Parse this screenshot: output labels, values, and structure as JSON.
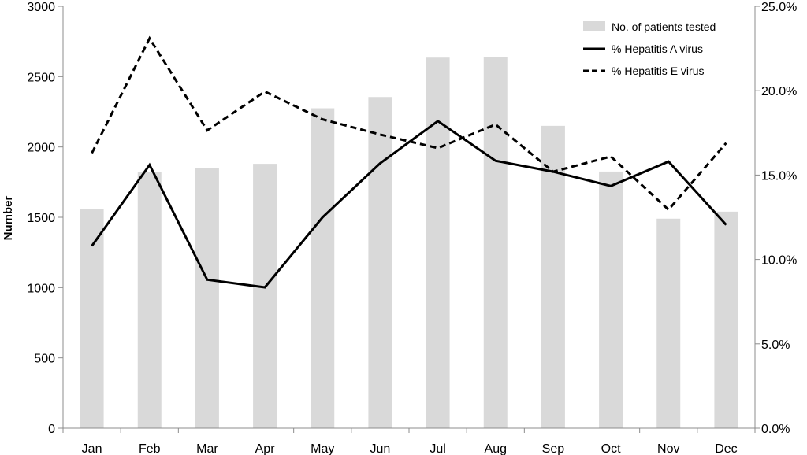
{
  "chart_data": {
    "type": "bar",
    "categories": [
      "Jan",
      "Feb",
      "Mar",
      "Apr",
      "May",
      "Jun",
      "Jul",
      "Aug",
      "Sep",
      "Oct",
      "Nov",
      "Dec"
    ],
    "ylabel": "Number",
    "ylim": [
      0,
      3000
    ],
    "yticks": [
      "0",
      "500",
      "1000",
      "1500",
      "2000",
      "2500",
      "3000"
    ],
    "y2lim": [
      0,
      25
    ],
    "y2ticks": [
      "0.0%",
      "5.0%",
      "10.0%",
      "15.0%",
      "20.0%",
      "25.0%"
    ],
    "grid": false,
    "legend_position": "top-right",
    "series": [
      {
        "name": "No. of patients tested",
        "type": "bar",
        "axis": "left",
        "color": "#d9d9d9",
        "values": [
          1560,
          1820,
          1850,
          1880,
          2275,
          2355,
          2635,
          2640,
          2150,
          1825,
          1490,
          1540
        ]
      },
      {
        "name": "% Hepatitis A virus",
        "type": "line",
        "axis": "right",
        "dash": "solid",
        "color": "#000000",
        "values": [
          10.8,
          15.6,
          8.8,
          8.35,
          12.5,
          15.7,
          18.2,
          15.85,
          15.2,
          14.35,
          15.8,
          12.05
        ]
      },
      {
        "name": "% Hepatitis E virus",
        "type": "line",
        "axis": "right",
        "dash": "dashed",
        "color": "#000000",
        "values": [
          16.3,
          23.1,
          17.65,
          19.95,
          18.3,
          17.4,
          16.6,
          18.0,
          15.2,
          16.1,
          12.95,
          16.9
        ]
      }
    ]
  }
}
